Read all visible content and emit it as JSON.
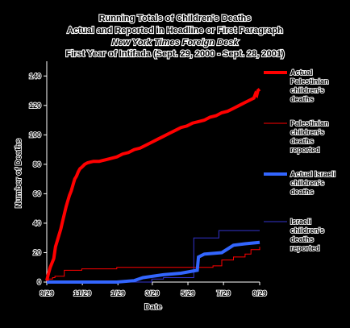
{
  "chart_data": {
    "type": "line",
    "title_lines": [
      "Running Totals of Children's Deaths",
      "Actual and Reported in Headline or First Paragraph",
      "New York Times Foreign Desk",
      "First Year of Intifada (Sept. 29, 2000 - Sept. 28, 2001)"
    ],
    "xlabel": "Date",
    "ylabel": "Number of Deaths",
    "x_tick_labels": [
      "9/29",
      "11/29",
      "1/29",
      "3/29",
      "5/29",
      "7/29",
      "9/29"
    ],
    "x_tick_positions": [
      0,
      61,
      122,
      181,
      242,
      303,
      365
    ],
    "xlim": [
      0,
      365
    ],
    "ylim": [
      0,
      150
    ],
    "y_ticks": [
      0,
      20,
      40,
      60,
      80,
      100,
      120,
      140
    ],
    "grid": false,
    "legend_position": "right",
    "series": [
      {
        "name": "Actual Palestinian children's deaths",
        "color": "#ff0000",
        "width": 4,
        "x": [
          0,
          3,
          6,
          9,
          12,
          15,
          18,
          21,
          24,
          27,
          30,
          33,
          36,
          39,
          42,
          45,
          48,
          51,
          54,
          57,
          60,
          65,
          70,
          75,
          80,
          90,
          100,
          110,
          120,
          125,
          130,
          140,
          150,
          160,
          170,
          180,
          190,
          200,
          210,
          220,
          230,
          240,
          250,
          260,
          270,
          280,
          290,
          300,
          310,
          320,
          330,
          340,
          350,
          355,
          358,
          360,
          362,
          365
        ],
        "y": [
          1,
          6,
          10,
          13,
          16,
          24,
          28,
          32,
          36,
          41,
          46,
          51,
          55,
          59,
          62,
          66,
          70,
          72,
          75,
          77,
          78,
          80,
          81,
          81.5,
          82,
          82,
          83,
          84,
          85,
          86,
          87,
          88,
          90,
          91,
          93,
          95,
          97,
          99,
          101,
          103,
          105,
          106,
          108,
          109,
          110,
          112,
          113,
          115,
          116,
          118,
          120,
          122,
          124,
          125,
          128,
          127,
          130,
          131
        ]
      },
      {
        "name": "Palestinian children's deaths reported",
        "color": "#ff0000",
        "width": 1,
        "x": [
          0,
          3,
          10,
          14,
          30,
          60,
          90,
          120,
          150,
          180,
          200,
          230,
          260,
          275,
          285,
          300,
          320,
          340,
          350,
          365
        ],
        "y": [
          1,
          2,
          3,
          4,
          8,
          9,
          9,
          10,
          10,
          10,
          10,
          10,
          10,
          10,
          11,
          15,
          17,
          19,
          22,
          24
        ]
      },
      {
        "name": "Actual Israeli children's deaths",
        "color": "#3366ff",
        "width": 4,
        "x": [
          0,
          60,
          120,
          150,
          165,
          200,
          230,
          258,
          260,
          270,
          300,
          320,
          340,
          365
        ],
        "y": [
          0,
          0,
          0,
          1,
          3,
          5,
          6,
          8,
          17,
          19,
          20,
          25,
          26,
          27
        ]
      },
      {
        "name": "Israeli children's deaths reported",
        "color": "#3333cc",
        "width": 1,
        "x": [
          0,
          60,
          120,
          170,
          180,
          200,
          245,
          252,
          265,
          285,
          295,
          300,
          335,
          365
        ],
        "y": [
          0,
          0,
          0,
          0,
          2,
          3,
          3,
          30,
          30,
          30,
          35,
          35,
          35,
          35
        ]
      }
    ]
  }
}
